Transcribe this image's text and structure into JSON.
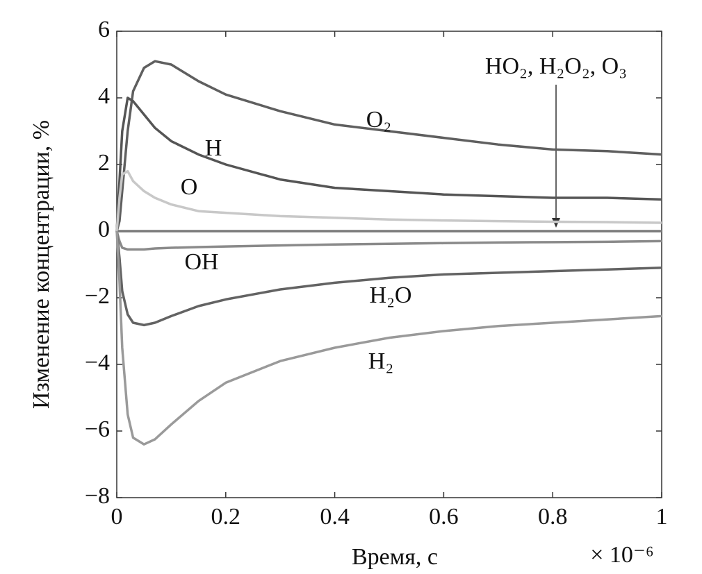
{
  "chart_data": {
    "type": "line",
    "x_label": "Время, с",
    "y_label": "Изменение концентрации, %",
    "x_multiplier": "× 10⁻⁶",
    "annotation": "HO₂, H₂O₂, O₃",
    "x": [
      0,
      0.005,
      0.01,
      0.02,
      0.03,
      0.05,
      0.07,
      0.1,
      0.15,
      0.2,
      0.3,
      0.4,
      0.5,
      0.6,
      0.7,
      0.8,
      0.9,
      1
    ],
    "series": [
      {
        "name": "O₂",
        "color": "#5f5f5f",
        "values": [
          0,
          0.3,
          1.2,
          3.0,
          4.2,
          4.9,
          5.1,
          5.0,
          4.5,
          4.1,
          3.6,
          3.2,
          3.0,
          2.8,
          2.6,
          2.45,
          2.4,
          2.3
        ]
      },
      {
        "name": "H",
        "color": "#555555",
        "values": [
          0,
          1.5,
          3.0,
          4.0,
          3.9,
          3.5,
          3.1,
          2.7,
          2.3,
          2.0,
          1.55,
          1.3,
          1.2,
          1.1,
          1.05,
          1.0,
          1.0,
          0.95
        ]
      },
      {
        "name": "O",
        "color": "#c8c8c8",
        "values": [
          0,
          1.0,
          1.7,
          1.8,
          1.5,
          1.2,
          1.0,
          0.8,
          0.6,
          0.55,
          0.45,
          0.4,
          0.35,
          0.32,
          0.3,
          0.28,
          0.27,
          0.25
        ]
      },
      {
        "name": "OH",
        "color": "#8a8a8a",
        "values": [
          0,
          -0.3,
          -0.5,
          -0.55,
          -0.55,
          -0.55,
          -0.52,
          -0.5,
          -0.48,
          -0.46,
          -0.43,
          -0.4,
          -0.38,
          -0.36,
          -0.34,
          -0.33,
          -0.32,
          -0.3
        ]
      },
      {
        "name": "H₂O",
        "color": "#636363",
        "values": [
          0,
          -0.8,
          -1.8,
          -2.5,
          -2.75,
          -2.82,
          -2.75,
          -2.55,
          -2.25,
          -2.05,
          -1.75,
          -1.55,
          -1.4,
          -1.3,
          -1.25,
          -1.2,
          -1.15,
          -1.1
        ]
      },
      {
        "name": "H₂",
        "color": "#9a9a9a",
        "values": [
          0,
          -1.5,
          -3.5,
          -5.5,
          -6.2,
          -6.4,
          -6.25,
          -5.8,
          -5.1,
          -4.55,
          -3.9,
          -3.5,
          -3.2,
          -3.0,
          -2.85,
          -2.75,
          -2.65,
          -2.55
        ]
      }
    ],
    "zero_series": {
      "color": "#7a7a7a",
      "values": [
        0,
        0,
        0,
        0,
        0,
        0,
        0,
        0,
        0,
        0,
        0,
        0,
        0,
        0,
        0,
        0,
        0,
        0
      ]
    },
    "xlim": [
      0,
      1
    ],
    "xticks": [
      0,
      0.2,
      0.4,
      0.6,
      0.8,
      1
    ],
    "ylim": [
      -8,
      6
    ],
    "yticks": [
      {
        "value": -8,
        "label": "−8"
      },
      {
        "value": -6,
        "label": "−6"
      },
      {
        "value": -4,
        "label": "−4"
      },
      {
        "value": -2,
        "label": "−2"
      },
      0,
      2,
      4,
      6
    ],
    "grid": false
  }
}
